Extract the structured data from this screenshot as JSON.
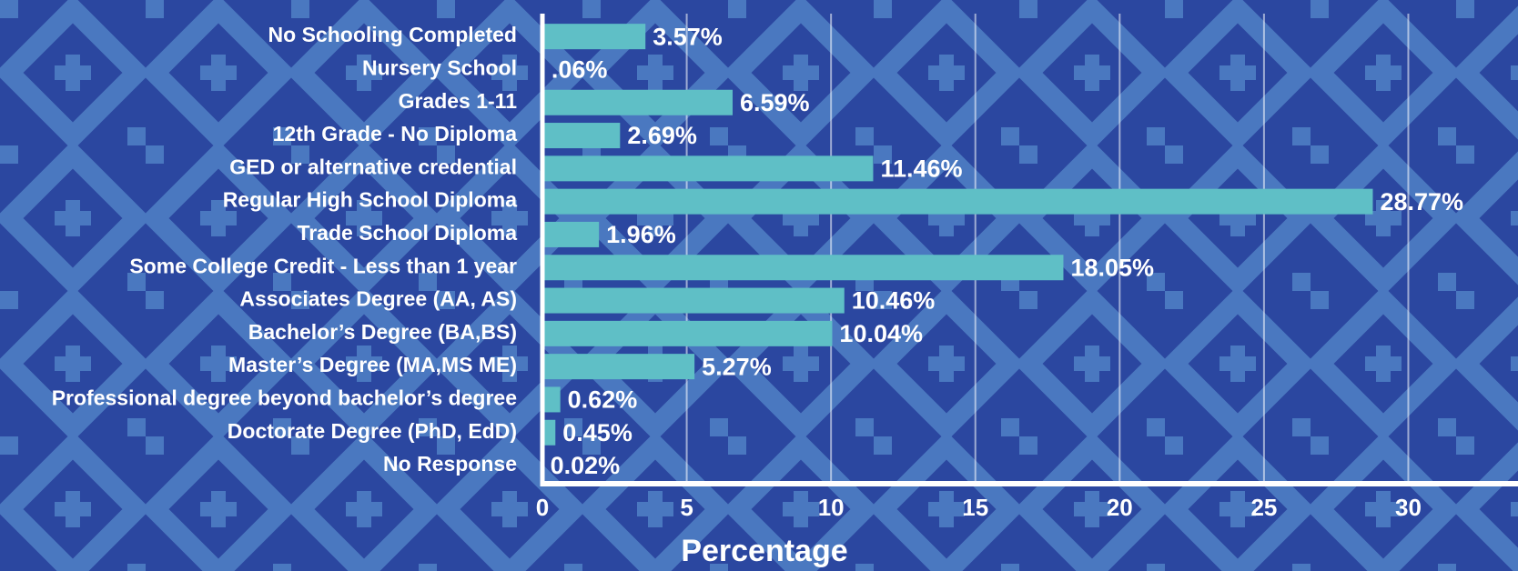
{
  "chart_data": {
    "type": "hbar",
    "x_label": "Percentage",
    "categories": [
      "No Schooling Completed",
      "Nursery School",
      "Grades 1-11",
      "12th Grade - No Diploma",
      "GED or alternative credential",
      "Regular High School Diploma",
      "Trade School Diploma",
      "Some College Credit - Less than 1 year",
      "Associates Degree (AA, AS)",
      "Bachelor’s Degree (BA,BS)",
      "Master’s Degree (MA,MS ME)",
      "Professional degree beyond bachelor’s degree",
      "Doctorate Degree (PhD, EdD)",
      "No Response"
    ],
    "values": [
      3.57,
      0.06,
      6.59,
      2.69,
      11.46,
      28.77,
      1.96,
      18.05,
      10.46,
      10.04,
      5.27,
      0.62,
      0.45,
      0.02
    ],
    "value_labels": [
      "3.57%",
      ".06%",
      "6.59%",
      "2.69%",
      "11.46%",
      "28.77%",
      "1.96%",
      "18.05%",
      "10.46%",
      "10.04%",
      "5.27%",
      "0.62%",
      "0.45%",
      "0.02%"
    ],
    "color": "#5fbfc6",
    "xlim": [
      0,
      33.8
    ],
    "xticks": [
      0,
      5,
      10,
      15,
      20,
      25,
      30
    ],
    "grid": true
  }
}
